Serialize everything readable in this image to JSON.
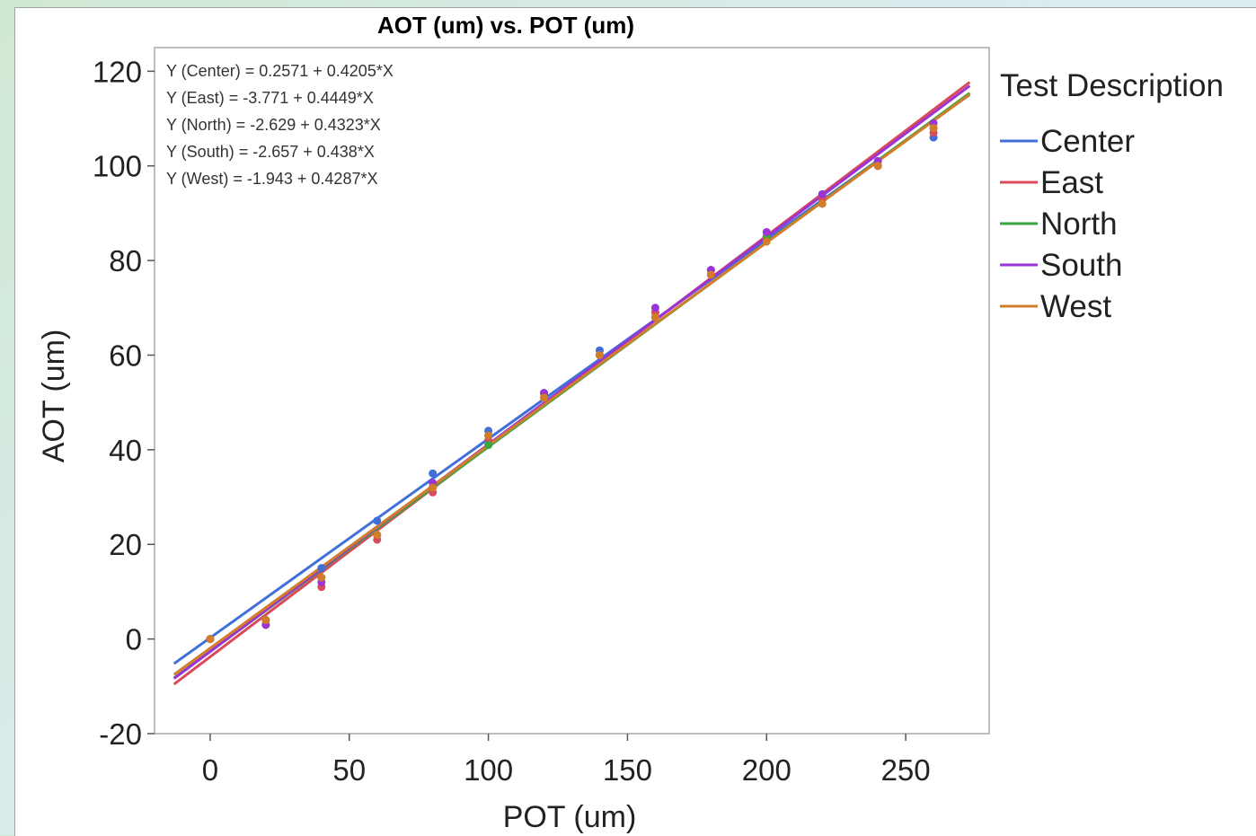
{
  "chart_data": {
    "type": "scatter",
    "title": "AOT (um) vs. POT (um)",
    "xlabel": "POT (um)",
    "ylabel": "AOT (um)",
    "xlim": [
      -20,
      280
    ],
    "ylim": [
      -20,
      125
    ],
    "xticks": [
      0,
      50,
      100,
      150,
      200,
      250
    ],
    "yticks": [
      -20,
      0,
      20,
      40,
      60,
      80,
      100,
      120
    ],
    "grid": false,
    "legend_title": "Test Description",
    "legend_position": "right",
    "fit_x_range": [
      -13,
      273
    ],
    "equations": [
      "Y (Center) = 0.2571 + 0.4205*X",
      "Y (East) = -3.771 + 0.4449*X",
      "Y (North) = -2.629 + 0.4323*X",
      "Y (South) = -2.657 + 0.438*X",
      "Y (West) = -1.943 + 0.4287*X"
    ],
    "series": [
      {
        "name": "Center",
        "color": "#3f6fd8",
        "intercept": 0.2571,
        "slope": 0.4205,
        "x": [
          0,
          20,
          40,
          60,
          80,
          100,
          120,
          140,
          160,
          180,
          200,
          220,
          240,
          260
        ],
        "y": [
          0,
          4,
          15,
          25,
          35,
          44,
          52,
          61,
          69,
          78,
          85,
          94,
          101,
          106
        ]
      },
      {
        "name": "East",
        "color": "#d94a5a",
        "intercept": -3.771,
        "slope": 0.4449,
        "x": [
          0,
          20,
          40,
          60,
          80,
          100,
          120,
          140,
          160,
          180,
          200,
          220,
          240,
          260
        ],
        "y": [
          0,
          3,
          11,
          21,
          31,
          42,
          51,
          60,
          69,
          77,
          85,
          93,
          100,
          107
        ]
      },
      {
        "name": "North",
        "color": "#3aa641",
        "intercept": -2.629,
        "slope": 0.4323,
        "x": [
          0,
          20,
          40,
          60,
          80,
          100,
          120,
          140,
          160,
          180,
          200,
          220,
          240,
          260
        ],
        "y": [
          0,
          4,
          13,
          22,
          32,
          41,
          51,
          60,
          68,
          77,
          85,
          92,
          100,
          108
        ]
      },
      {
        "name": "South",
        "color": "#9b34d6",
        "intercept": -2.657,
        "slope": 0.438,
        "x": [
          0,
          20,
          40,
          60,
          80,
          100,
          120,
          140,
          160,
          180,
          200,
          220,
          240,
          260
        ],
        "y": [
          0,
          3,
          12,
          22,
          33,
          43,
          52,
          60,
          70,
          78,
          86,
          94,
          101,
          109
        ]
      },
      {
        "name": "West",
        "color": "#d37c2a",
        "intercept": -1.943,
        "slope": 0.4287,
        "x": [
          0,
          20,
          40,
          60,
          80,
          100,
          120,
          140,
          160,
          180,
          200,
          220,
          240,
          260
        ],
        "y": [
          0,
          4,
          13,
          22,
          32,
          43,
          51,
          60,
          68,
          77,
          84,
          92,
          100,
          108
        ]
      }
    ]
  }
}
